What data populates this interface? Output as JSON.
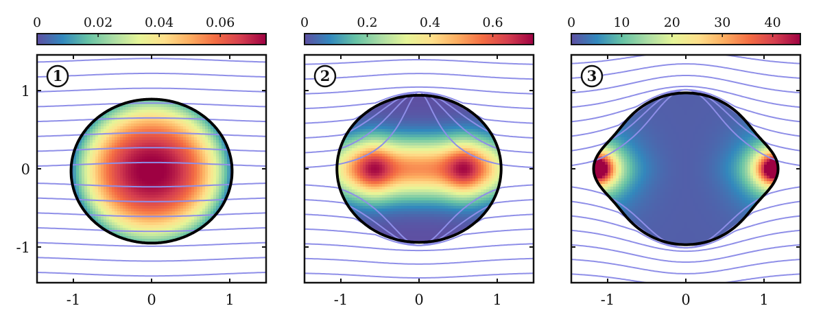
{
  "colorscale": {
    "name": "Spectral (reversed)",
    "stops": [
      "#5e4fa2",
      "#3288bd",
      "#66c2a5",
      "#abdda4",
      "#e6f598",
      "#fee08b",
      "#fdae61",
      "#f46d43",
      "#d53e4f",
      "#9e0142"
    ]
  },
  "streamline_color": "#8e8ee8",
  "shared_axes": {
    "x_ticks": [
      -1,
      0,
      1
    ],
    "x_tick_labels": [
      "-1",
      "0",
      "1"
    ],
    "y_ticks": [
      1,
      0,
      -1
    ],
    "y_tick_labels": [
      "1",
      "0",
      "-1"
    ],
    "x_range": [
      -1.45,
      1.45
    ],
    "y_range": [
      -1.45,
      1.45
    ]
  },
  "panels": [
    {
      "badge": "1",
      "field": "centered",
      "colorbar": {
        "ticks": [
          0,
          0.02,
          0.04,
          0.06
        ],
        "labels": [
          "0",
          "0.02",
          "0.04",
          "0.06"
        ],
        "max": 0.075
      },
      "show_y_ticks": true,
      "show_x_ticks": true
    },
    {
      "badge": "2",
      "field": "double-lobe",
      "colorbar": {
        "ticks": [
          0,
          0.2,
          0.4,
          0.6
        ],
        "labels": [
          "0",
          "0.2",
          "0.4",
          "0.6"
        ],
        "max": 0.73
      },
      "show_y_ticks": false,
      "show_x_ticks": true
    },
    {
      "badge": "3",
      "field": "tips",
      "colorbar": {
        "ticks": [
          0,
          10,
          20,
          30,
          40
        ],
        "labels": [
          "0",
          "10",
          "20",
          "30",
          "40"
        ],
        "max": 45.5
      },
      "show_y_ticks": false,
      "show_x_ticks": true
    }
  ]
}
